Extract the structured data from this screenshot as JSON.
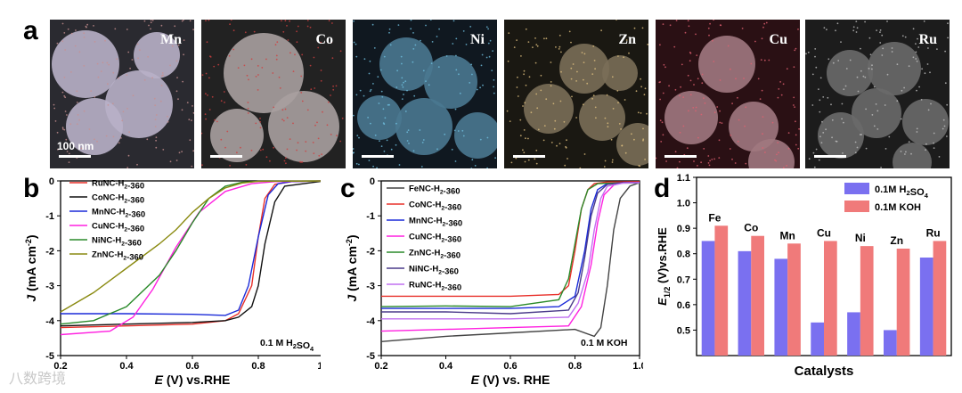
{
  "panel_a": {
    "letter": "a",
    "scale_label": "100 nm",
    "images": [
      {
        "label": "Mn",
        "bg": "#2a2a30",
        "tint": "#b8b0c8",
        "dot": "#c89090"
      },
      {
        "label": "Co",
        "bg": "#222",
        "tint": "#a8a0a0",
        "dot": "#d04040"
      },
      {
        "label": "Ni",
        "bg": "#101820",
        "tint": "#4a7890",
        "dot": "#70c0e0"
      },
      {
        "label": "Zn",
        "bg": "#1a1812",
        "tint": "#7a6e58",
        "dot": "#e0c080"
      },
      {
        "label": "Cu",
        "bg": "#2a1014",
        "tint": "#a07880",
        "dot": "#e06070"
      },
      {
        "label": "Ru",
        "bg": "#1c1c1c",
        "tint": "#6a6a6a",
        "dot": "#c0c0c0"
      }
    ]
  },
  "chart_data": [
    {
      "panel": "b",
      "type": "line",
      "xlabel": "E (V) vs.RHE",
      "ylabel": "J (mA cm-2)",
      "xlim": [
        0.2,
        1.0
      ],
      "ylim": [
        -5,
        0
      ],
      "xticks": [
        "0.2",
        "0.4",
        "0.6",
        "0.8",
        "1.0"
      ],
      "yticks": [
        "0",
        "-1",
        "-2",
        "-3",
        "-4",
        "-5"
      ],
      "annotation": "0.1 M H2SO4",
      "series": [
        {
          "name": "RuNC-H2-360",
          "color": "#e8302a",
          "x": [
            0.2,
            0.4,
            0.6,
            0.7,
            0.74,
            0.78,
            0.8,
            0.82,
            0.85,
            0.9,
            1.0
          ],
          "y": [
            -4.2,
            -4.15,
            -4.1,
            -4.0,
            -3.8,
            -3.0,
            -1.6,
            -0.5,
            -0.1,
            -0.02,
            0
          ]
        },
        {
          "name": "CoNC-H2-360",
          "color": "#111111",
          "x": [
            0.2,
            0.4,
            0.6,
            0.7,
            0.74,
            0.78,
            0.8,
            0.82,
            0.85,
            0.88,
            1.0
          ],
          "y": [
            -4.15,
            -4.1,
            -4.05,
            -4.0,
            -3.9,
            -3.6,
            -3.0,
            -1.8,
            -0.6,
            -0.15,
            0
          ]
        },
        {
          "name": "MnNC-H2-360",
          "color": "#1a2ad8",
          "x": [
            0.2,
            0.4,
            0.6,
            0.7,
            0.74,
            0.77,
            0.8,
            0.83,
            0.86,
            0.9,
            1.0
          ],
          "y": [
            -3.8,
            -3.8,
            -3.82,
            -3.85,
            -3.7,
            -3.0,
            -1.6,
            -0.4,
            -0.08,
            -0.02,
            0
          ]
        },
        {
          "name": "CuNC-H2-360",
          "color": "#ff20e0",
          "x": [
            0.2,
            0.35,
            0.42,
            0.48,
            0.55,
            0.62,
            0.7,
            0.78,
            0.85,
            1.0
          ],
          "y": [
            -4.4,
            -4.3,
            -3.9,
            -3.1,
            -1.9,
            -0.9,
            -0.3,
            -0.08,
            -0.02,
            0
          ]
        },
        {
          "name": "NiNC-H2-360",
          "color": "#2a8a2a",
          "x": [
            0.2,
            0.3,
            0.4,
            0.5,
            0.55,
            0.6,
            0.65,
            0.7,
            0.75,
            0.8,
            1.0
          ],
          "y": [
            -4.1,
            -4.0,
            -3.6,
            -2.7,
            -2.0,
            -1.2,
            -0.5,
            -0.15,
            -0.04,
            -0.01,
            0
          ]
        },
        {
          "name": "ZnNC-H2-360",
          "color": "#8a8a10",
          "x": [
            0.2,
            0.3,
            0.4,
            0.5,
            0.55,
            0.6,
            0.65,
            0.7,
            0.75,
            0.8,
            1.0
          ],
          "y": [
            -3.75,
            -3.2,
            -2.5,
            -1.8,
            -1.4,
            -0.9,
            -0.5,
            -0.2,
            -0.06,
            -0.01,
            0
          ]
        }
      ]
    },
    {
      "panel": "c",
      "type": "line",
      "xlabel": "E (V) vs. RHE",
      "ylabel": "J (mA cm-2)",
      "xlim": [
        0.2,
        1.0
      ],
      "ylim": [
        -5,
        0
      ],
      "xticks": [
        "0.2",
        "0.4",
        "0.6",
        "0.8",
        "1.0"
      ],
      "yticks": [
        "0",
        "-1",
        "-2",
        "-3",
        "-4",
        "-5"
      ],
      "annotation": "0.1 M KOH",
      "series": [
        {
          "name": "FeNC-H2-360",
          "color": "#444444",
          "x": [
            0.2,
            0.4,
            0.6,
            0.8,
            0.86,
            0.88,
            0.9,
            0.92,
            0.94,
            0.97,
            1.0
          ],
          "y": [
            -4.6,
            -4.45,
            -4.35,
            -4.25,
            -4.45,
            -4.2,
            -3.0,
            -1.4,
            -0.5,
            -0.15,
            -0.05
          ]
        },
        {
          "name": "CoNC-H2-360",
          "color": "#e8302a",
          "x": [
            0.2,
            0.4,
            0.6,
            0.75,
            0.78,
            0.8,
            0.82,
            0.84,
            0.86,
            0.9,
            1.0
          ],
          "y": [
            -3.3,
            -3.3,
            -3.3,
            -3.25,
            -3.0,
            -2.0,
            -0.8,
            -0.25,
            -0.08,
            -0.03,
            -0.02
          ]
        },
        {
          "name": "MnNC-H2-360",
          "color": "#1a2ad8",
          "x": [
            0.2,
            0.4,
            0.6,
            0.75,
            0.8,
            0.83,
            0.85,
            0.87,
            0.9,
            0.95,
            1.0
          ],
          "y": [
            -3.65,
            -3.65,
            -3.65,
            -3.6,
            -3.3,
            -2.0,
            -0.8,
            -0.25,
            -0.08,
            -0.05,
            -0.05
          ]
        },
        {
          "name": "CuNC-H2-360",
          "color": "#ff20e0",
          "x": [
            0.2,
            0.4,
            0.6,
            0.78,
            0.82,
            0.85,
            0.87,
            0.89,
            0.92,
            0.95,
            1.0
          ],
          "y": [
            -4.3,
            -4.25,
            -4.2,
            -4.15,
            -3.6,
            -2.4,
            -1.2,
            -0.4,
            -0.12,
            -0.05,
            -0.05
          ]
        },
        {
          "name": "ZnNC-H2-360",
          "color": "#2a8a2a",
          "x": [
            0.2,
            0.4,
            0.6,
            0.75,
            0.78,
            0.8,
            0.82,
            0.84,
            0.87,
            0.92,
            1.0
          ],
          "y": [
            -3.6,
            -3.58,
            -3.6,
            -3.4,
            -2.8,
            -1.8,
            -0.8,
            -0.25,
            -0.08,
            -0.06,
            -0.06
          ]
        },
        {
          "name": "NiNC-H2-360",
          "color": "#4a3a8a",
          "x": [
            0.2,
            0.4,
            0.6,
            0.78,
            0.81,
            0.83,
            0.85,
            0.87,
            0.9,
            0.95,
            1.0
          ],
          "y": [
            -3.75,
            -3.75,
            -3.8,
            -3.7,
            -3.2,
            -2.2,
            -1.0,
            -0.35,
            -0.1,
            -0.05,
            -0.05
          ]
        },
        {
          "name": "RuNC-H2-360",
          "color": "#c070f0",
          "x": [
            0.2,
            0.4,
            0.6,
            0.78,
            0.81,
            0.84,
            0.86,
            0.88,
            0.9,
            0.95,
            1.0
          ],
          "y": [
            -3.95,
            -3.95,
            -3.95,
            -3.9,
            -3.5,
            -2.6,
            -1.4,
            -0.5,
            -0.15,
            -0.06,
            -0.05
          ]
        }
      ]
    },
    {
      "panel": "d",
      "type": "bar",
      "xlabel": "Catalysts",
      "ylabel": "E1/2 (V)vs.RHE",
      "ylim": [
        0.4,
        1.1
      ],
      "yticks": [
        "0.5",
        "0.6",
        "0.7",
        "0.8",
        "0.9",
        "1.0",
        "1.1"
      ],
      "categories": [
        "Fe",
        "Co",
        "Mn",
        "Cu",
        "Ni",
        "Zn",
        "Ru"
      ],
      "series": [
        {
          "name": "0.1M H2SO4",
          "color": "#7a70f0",
          "values": [
            0.85,
            0.81,
            0.78,
            0.53,
            0.57,
            0.5,
            0.785
          ]
        },
        {
          "name": "0.1M KOH",
          "color": "#f07a7a",
          "values": [
            0.91,
            0.87,
            0.84,
            0.85,
            0.83,
            0.82,
            0.85
          ]
        }
      ]
    }
  ],
  "watermark": "八数跨境"
}
